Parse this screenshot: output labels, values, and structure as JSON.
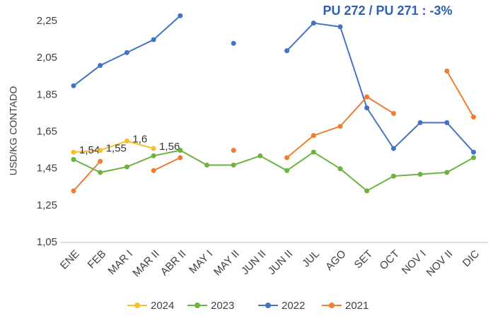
{
  "chart_data": {
    "type": "line",
    "annotation": "PU 272 / PU 271 : -3%",
    "y_label": "USD/KG CONTADO",
    "categories": [
      "ENE",
      "FEB",
      "MAR I",
      "MAR II",
      "ABR II",
      "MAY I",
      "MAY II",
      "JUN II",
      "JUN II",
      "JUL",
      "AGO",
      "SET",
      "OCT",
      "NOV I",
      "NOV II",
      "DIC"
    ],
    "series": [
      {
        "name": "2024",
        "color": "#f5c02a",
        "values": [
          1.54,
          1.55,
          1.6,
          1.56,
          null,
          null,
          null,
          null,
          null,
          null,
          null,
          null,
          null,
          null,
          null,
          null
        ],
        "value_labels": [
          "1,54",
          "1,55",
          "1,6",
          "1,56",
          null,
          null,
          null,
          null,
          null,
          null,
          null,
          null,
          null,
          null,
          null,
          null
        ]
      },
      {
        "name": "2023",
        "color": "#6db33f",
        "values": [
          1.5,
          1.43,
          1.46,
          1.52,
          1.55,
          1.47,
          1.47,
          1.52,
          1.44,
          1.54,
          1.45,
          1.33,
          1.41,
          1.42,
          1.43,
          1.51
        ]
      },
      {
        "name": "2022",
        "color": "#4472c4",
        "values": [
          1.9,
          2.01,
          2.08,
          2.15,
          2.28,
          null,
          2.13,
          null,
          2.09,
          2.24,
          2.22,
          1.78,
          1.56,
          1.7,
          1.7,
          1.54
        ]
      },
      {
        "name": "2021",
        "color": "#ed7d31",
        "values": [
          1.33,
          1.49,
          null,
          1.44,
          1.51,
          null,
          1.55,
          null,
          1.51,
          1.63,
          1.68,
          1.84,
          1.75,
          null,
          1.98,
          1.73
        ]
      }
    ],
    "ylim": [
      1.05,
      2.3
    ],
    "yticks": [
      {
        "value": 1.05,
        "label": "1,05"
      },
      {
        "value": 1.25,
        "label": "1,25"
      },
      {
        "value": 1.45,
        "label": "1,45"
      },
      {
        "value": 1.65,
        "label": "1,65"
      },
      {
        "value": 1.85,
        "label": "1,85"
      },
      {
        "value": 2.05,
        "label": "2,05"
      },
      {
        "value": 2.25,
        "label": "2,25"
      }
    ],
    "grid": false,
    "legend": "bottom"
  }
}
